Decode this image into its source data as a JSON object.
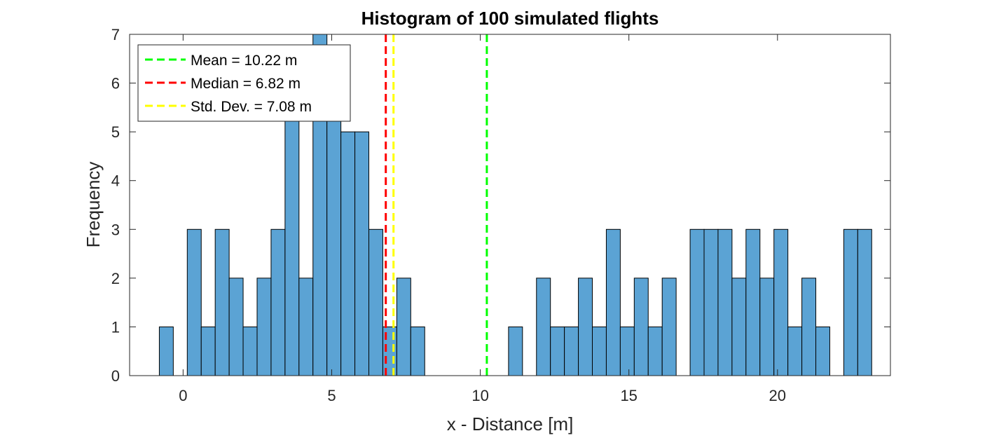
{
  "chart_data": {
    "type": "bar",
    "title": "Histogram of 100 simulated flights",
    "xlabel": "x - Distance [m]",
    "ylabel": "Frequency",
    "xlim": [
      -1.8,
      23.8
    ],
    "ylim": [
      0,
      7
    ],
    "xticks": [
      0,
      5,
      10,
      15,
      20
    ],
    "yticks": [
      0,
      1,
      2,
      3,
      4,
      5,
      6,
      7
    ],
    "grid": false,
    "bar_color": "#5ba3d4",
    "bin_start": -0.8,
    "bin_width": 0.47,
    "values": [
      1,
      0,
      3,
      1,
      3,
      2,
      1,
      2,
      3,
      6,
      2,
      7,
      6,
      5,
      5,
      3,
      1,
      2,
      1,
      0,
      0,
      0,
      0,
      0,
      0,
      1,
      0,
      2,
      1,
      1,
      2,
      1,
      3,
      1,
      2,
      1,
      2,
      0,
      3,
      3,
      3,
      2,
      3,
      2,
      3,
      1,
      2,
      1,
      0,
      3,
      3
    ],
    "reference_lines": [
      {
        "name": "Mean = 10.22 m",
        "value": 10.22,
        "color": "#00ff00"
      },
      {
        "name": "Median = 6.82 m",
        "value": 6.82,
        "color": "#ff0000"
      },
      {
        "name": "Std. Dev. = 7.08 m",
        "value": 7.08,
        "color": "#ffff00"
      }
    ],
    "legend_position": "top-left"
  }
}
